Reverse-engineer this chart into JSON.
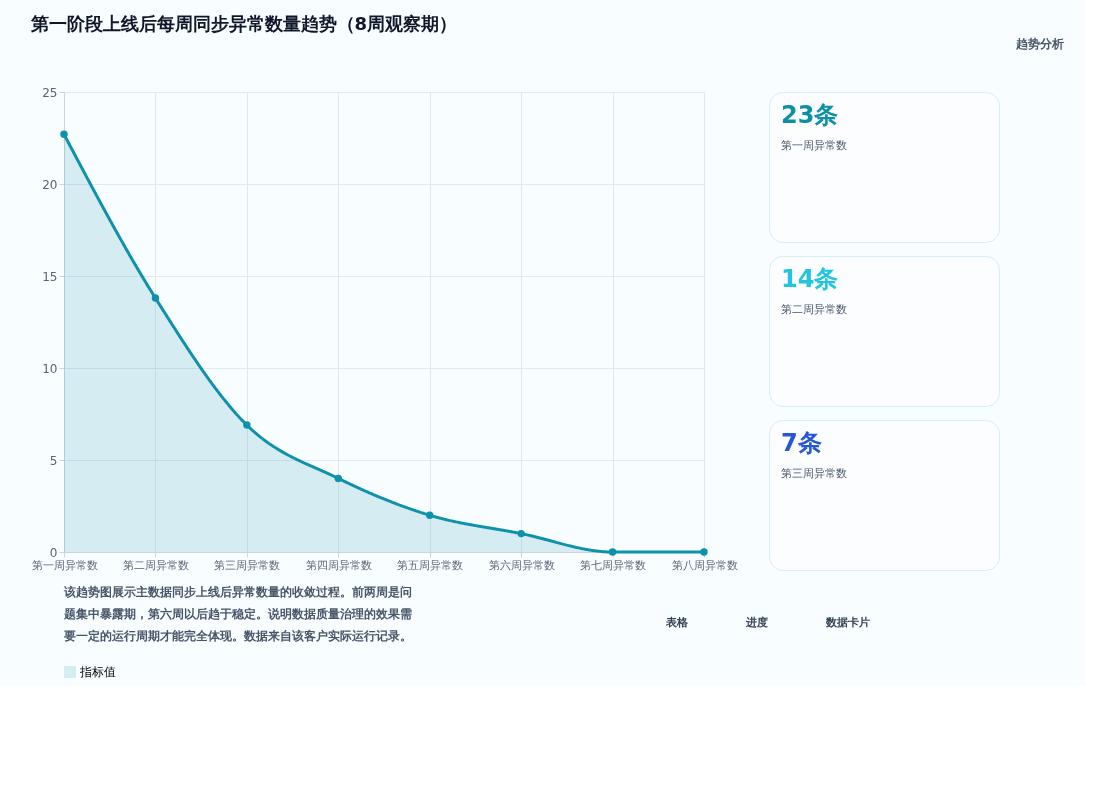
{
  "chart_data": {
    "type": "area",
    "title": "第一阶段上线后每周同步异常数量趋势（8周观察期）",
    "categories": [
      "第一周异常数",
      "第二周异常数",
      "第三周异常数",
      "第四周异常数",
      "第五周异常数",
      "第六周异常数",
      "第七周异常数",
      "第八周异常数"
    ],
    "series": [
      {
        "name": "指标值",
        "color": "#0e91ab",
        "values": [
          22.7,
          13.8,
          6.9,
          4,
          2,
          1,
          0,
          0
        ]
      }
    ],
    "ylim": [
      0,
      25
    ],
    "yticks": [
      0,
      5,
      10,
      15,
      20,
      25
    ],
    "grid": true,
    "legend": "bottom",
    "marker": "circle",
    "line_style": "solid",
    "annotations": [
      "趋势分析",
      "23条",
      "第一周异常数",
      "14条",
      "第二周异常数",
      "7条",
      "第三周异常数",
      "该趋势图展示主数据同步上线后异常数量的收敛过程。前两周是问题集中暴露期，第六周以后趋于稳定。说明数据质量治理的效果需要一定的运行周期才能完全体现。数据来自该客户实际运行记录。",
      "表格",
      "进度",
      "数据卡片"
    ]
  }
}
